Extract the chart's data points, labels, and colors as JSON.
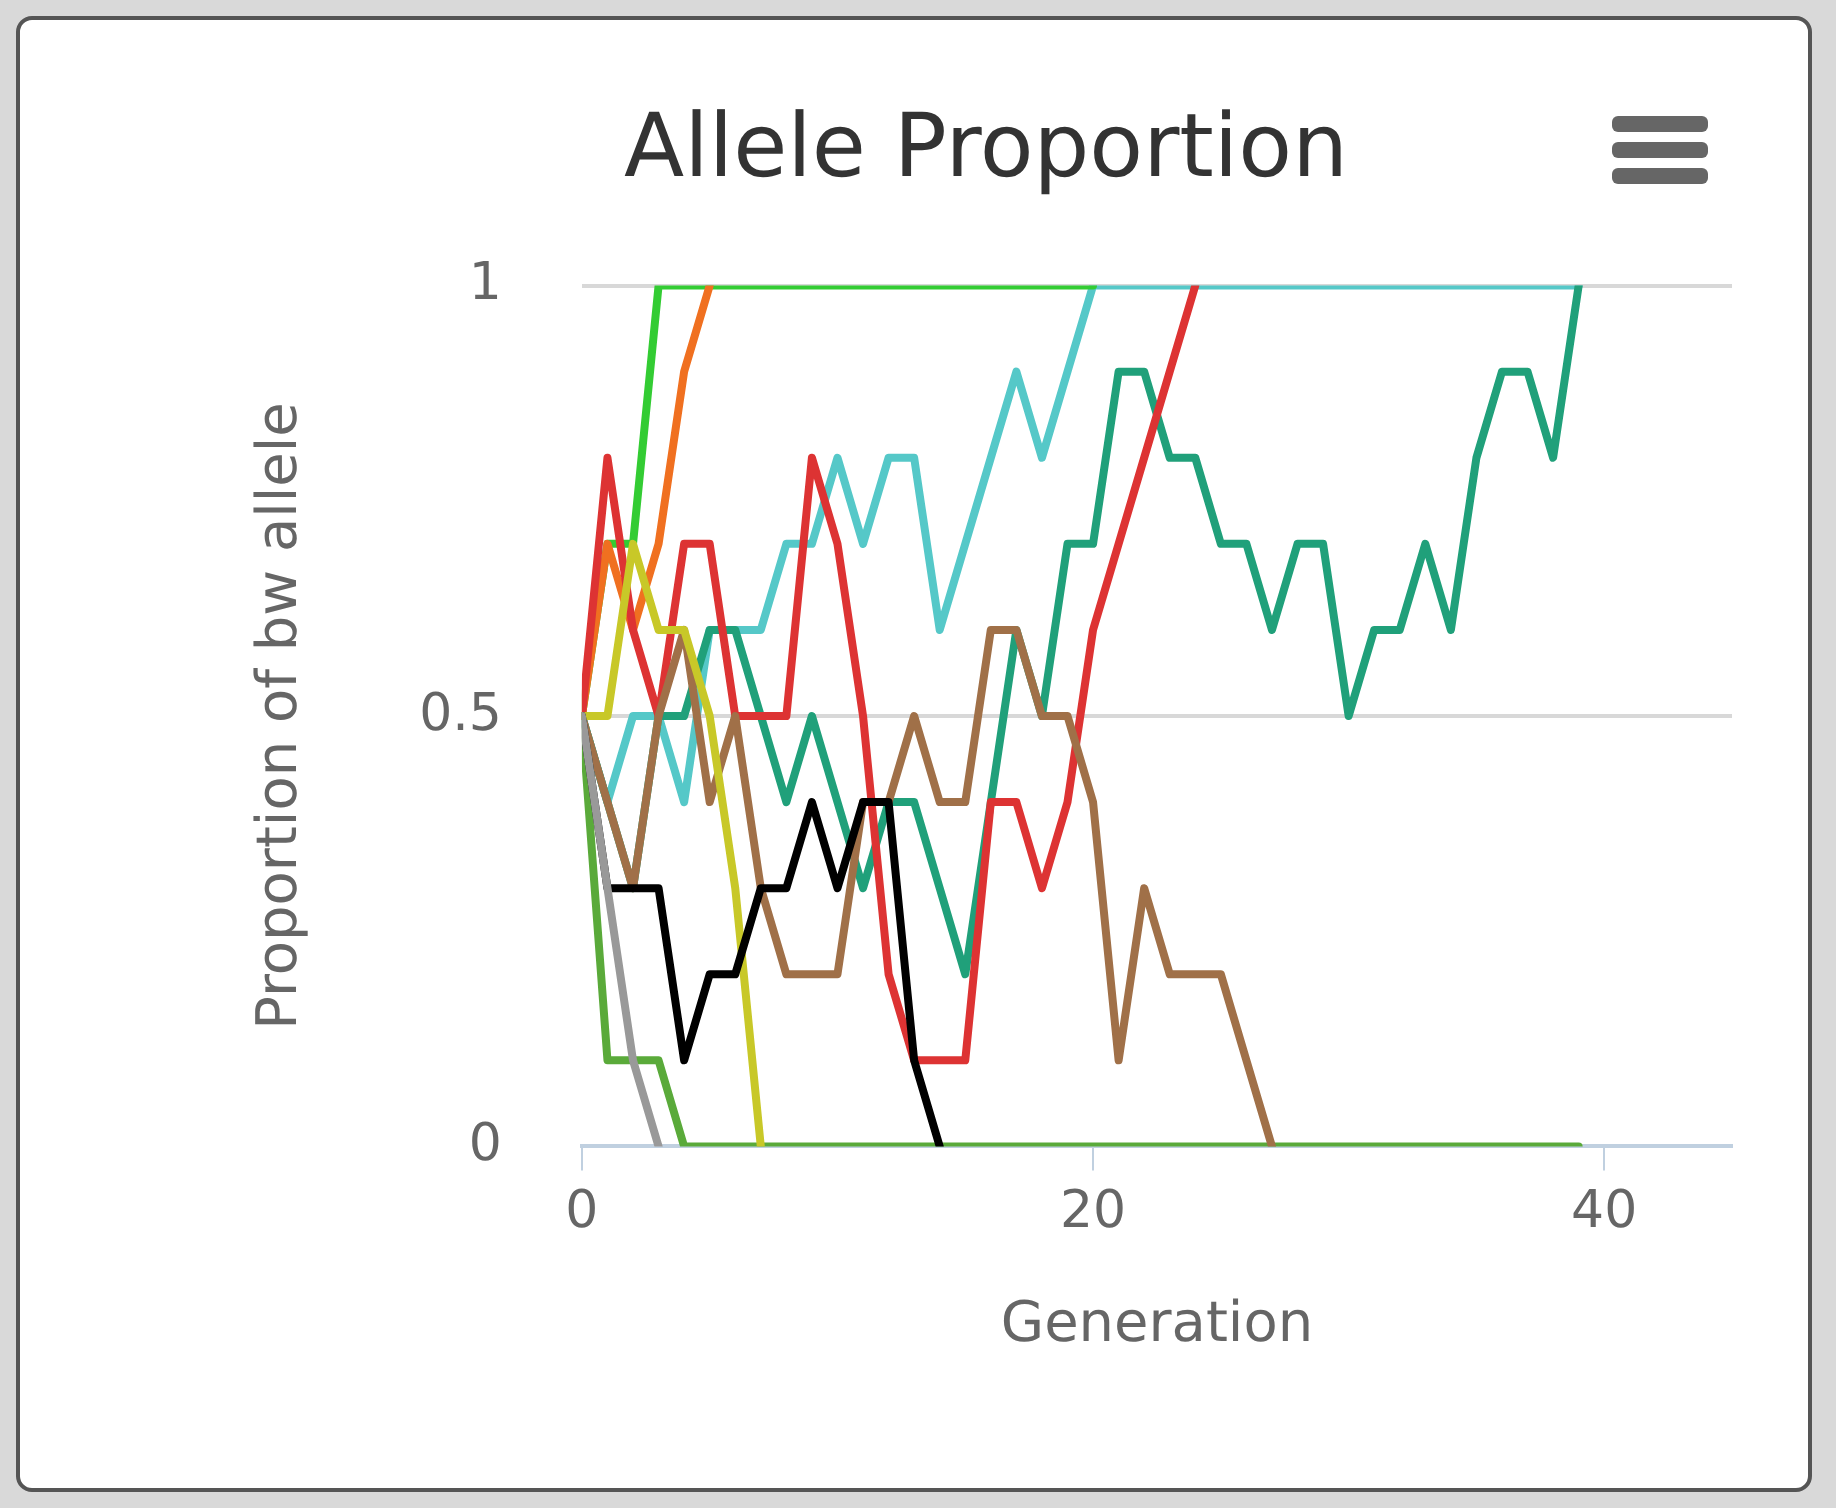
{
  "chart_data": {
    "type": "line",
    "title": "Allele Proportion",
    "xlabel": "Generation",
    "ylabel": "Proportion of bw allele",
    "xlim": [
      0,
      45
    ],
    "xticks": [
      0,
      20,
      40
    ],
    "ylim": [
      0,
      1
    ],
    "yticks": [
      0,
      0.5,
      1
    ],
    "grid": "y",
    "legend": false,
    "marker": "none",
    "line_style": "solid",
    "x": [
      0,
      1,
      2,
      3,
      4,
      5,
      6,
      7,
      8,
      9,
      10,
      11,
      12,
      13,
      14,
      15,
      16,
      17,
      18,
      19,
      20,
      21,
      22,
      23,
      24,
      25,
      26,
      27,
      28,
      29,
      30,
      31,
      32,
      33,
      34,
      35,
      36,
      37,
      38,
      39
    ],
    "series": [
      {
        "color": "#999999",
        "x": [
          0,
          1,
          2,
          3
        ],
        "values": [
          0.5,
          0.3,
          0.1,
          0
        ]
      },
      {
        "color": "#000000",
        "x": [
          0,
          1,
          2,
          3,
          4,
          5,
          6,
          7,
          8,
          9,
          10,
          11,
          12,
          13,
          14
        ],
        "values": [
          0.5,
          0.3,
          0.3,
          0.3,
          0.1,
          0.2,
          0.2,
          0.3,
          0.3,
          0.4,
          0.3,
          0.4,
          0.4,
          0.1,
          0
        ]
      },
      {
        "color": "#c8c828",
        "x": [
          0,
          1,
          2,
          3,
          4,
          5,
          6,
          7
        ],
        "values": [
          0.5,
          0.5,
          0.7,
          0.6,
          0.6,
          0.5,
          0.3,
          0
        ]
      },
      {
        "color": "#a07048",
        "x": [
          0,
          1,
          2,
          3,
          4,
          5,
          6,
          7,
          8,
          9,
          10,
          11,
          12,
          13,
          14,
          15,
          16,
          17,
          18,
          19,
          20,
          21,
          22,
          23,
          24,
          25,
          26,
          27
        ],
        "values": [
          0.5,
          0.4,
          0.3,
          0.5,
          0.6,
          0.4,
          0.5,
          0.3,
          0.2,
          0.2,
          0.2,
          0.4,
          0.4,
          0.5,
          0.4,
          0.4,
          0.6,
          0.6,
          0.5,
          0.5,
          0.4,
          0.1,
          0.3,
          0.2,
          0.2,
          0.2,
          0.1,
          0
        ]
      },
      {
        "color": "#dd3333",
        "x": [
          0,
          1,
          2,
          3,
          4,
          5,
          6,
          7,
          8,
          9,
          10,
          11,
          12,
          13,
          14,
          15,
          16,
          17,
          18,
          19,
          20,
          21,
          22,
          23,
          24
        ],
        "values": [
          0.5,
          0.8,
          0.6,
          0.5,
          0.7,
          0.7,
          0.5,
          0.5,
          0.5,
          0.8,
          0.7,
          0.5,
          0.2,
          0.1,
          0.1,
          0.1,
          0.4,
          0.4,
          0.3,
          0.4,
          0.6,
          0.7,
          0.8,
          0.9,
          1
        ]
      },
      {
        "color": "#f07020",
        "x": [
          0,
          1,
          2,
          3,
          4,
          5
        ],
        "values": [
          0.5,
          0.7,
          0.6,
          0.7,
          0.9,
          1
        ]
      },
      {
        "color": "#33cc33",
        "x": [
          0,
          1,
          2,
          3,
          4,
          5,
          6,
          7,
          8,
          9,
          10,
          11,
          12,
          13,
          14,
          15,
          16,
          17,
          18,
          19,
          20
        ],
        "values": [
          0.5,
          0.7,
          0.7,
          1,
          1,
          1,
          1,
          1,
          1,
          1,
          1,
          1,
          1,
          1,
          1,
          1,
          1,
          1,
          1,
          1,
          1
        ]
      },
      {
        "color": "#20a07a",
        "values": [
          0.5,
          0.4,
          0.3,
          0.5,
          0.5,
          0.6,
          0.6,
          0.5,
          0.4,
          0.5,
          0.4,
          0.3,
          0.4,
          0.4,
          0.3,
          0.2,
          0.4,
          0.6,
          0.5,
          0.7,
          0.7,
          0.9,
          0.9,
          0.8,
          0.8,
          0.7,
          0.7,
          0.6,
          0.7,
          0.7,
          0.5,
          0.6,
          0.6,
          0.7,
          0.6,
          0.8,
          0.9,
          0.9,
          0.8,
          1
        ]
      },
      {
        "color": "#55c8c8",
        "values": [
          0.5,
          0.4,
          0.5,
          0.5,
          0.4,
          0.6,
          0.6,
          0.6,
          0.7,
          0.7,
          0.8,
          0.7,
          0.8,
          0.8,
          0.6,
          0.7,
          0.8,
          0.9,
          0.8,
          0.9,
          1,
          1,
          1,
          1,
          1,
          1,
          1,
          1,
          1,
          1,
          1,
          1,
          1,
          1,
          1,
          1,
          1,
          1,
          1,
          1
        ]
      },
      {
        "color": "#5aaa3a",
        "values": [
          0.5,
          0.1,
          0.1,
          0.1,
          0,
          0,
          0,
          0,
          0,
          0,
          0,
          0,
          0,
          0,
          0,
          0,
          0,
          0,
          0,
          0,
          0,
          0,
          0,
          0,
          0,
          0,
          0,
          0,
          0,
          0,
          0,
          0,
          0,
          0,
          0,
          0,
          0,
          0,
          0,
          0
        ]
      }
    ]
  }
}
